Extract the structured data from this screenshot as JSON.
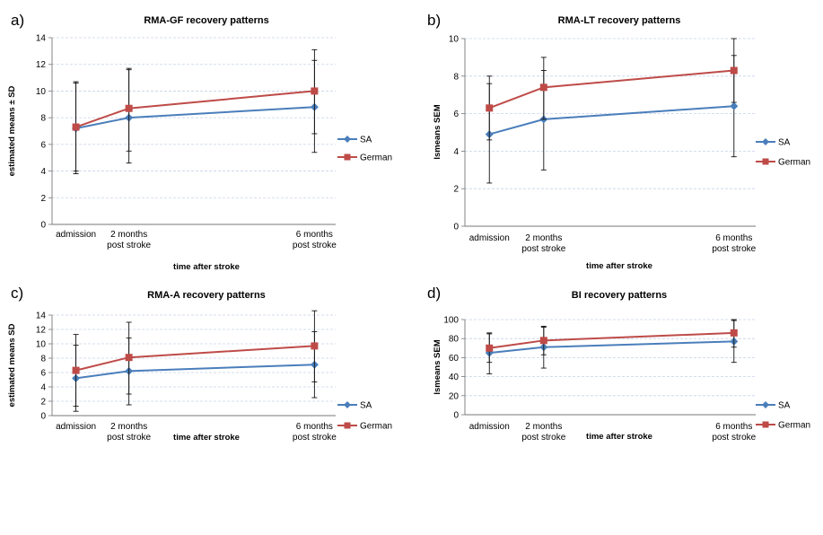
{
  "chart_data": [
    {
      "type": "line",
      "panel": "a)",
      "title": "RMA-GF recovery patterns",
      "xlabel": "time after stroke",
      "ylabel": "estimated means ± SD",
      "categories": [
        "admission",
        "2 months\npost stroke",
        "6 months\npost stroke"
      ],
      "x": [
        0,
        2,
        9
      ],
      "ylim": [
        0,
        14
      ],
      "yticks": [
        0,
        2,
        4,
        6,
        8,
        10,
        12,
        14
      ],
      "grid": true,
      "legend_position": "right",
      "series": [
        {
          "name": "SA",
          "color": "#4a7ebb",
          "marker": "diamond",
          "values": [
            7.2,
            8.0,
            8.8
          ],
          "err_low": [
            3.8,
            4.6,
            5.4
          ],
          "err_high": [
            10.6,
            11.6,
            12.3
          ]
        },
        {
          "name": "German",
          "color": "#be4b48",
          "marker": "square",
          "values": [
            7.3,
            8.7,
            10.0
          ],
          "err_low": [
            4.0,
            5.5,
            6.8
          ],
          "err_high": [
            10.7,
            11.7,
            13.1
          ]
        }
      ]
    },
    {
      "type": "line",
      "panel": "b)",
      "title": "RMA-LT recovery patterns",
      "xlabel": "time after stroke",
      "ylabel": "lsmeans SEM",
      "categories": [
        "admission",
        "2 months\npost stroke",
        "6 months\npost stroke"
      ],
      "x": [
        0,
        2,
        9
      ],
      "ylim": [
        0,
        10
      ],
      "yticks": [
        0,
        2,
        4,
        6,
        8,
        10
      ],
      "grid": true,
      "legend_position": "right",
      "series": [
        {
          "name": "SA",
          "color": "#4a7ebb",
          "marker": "diamond",
          "values": [
            4.9,
            5.7,
            6.4
          ],
          "err_low": [
            2.3,
            3.0,
            3.7
          ],
          "err_high": [
            7.6,
            8.3,
            9.1
          ]
        },
        {
          "name": "German",
          "color": "#be4b48",
          "marker": "square",
          "values": [
            6.3,
            7.4,
            8.3
          ],
          "err_low": [
            4.6,
            5.7,
            6.6
          ],
          "err_high": [
            8.0,
            9.0,
            10.0
          ]
        }
      ]
    },
    {
      "type": "line",
      "panel": "c)",
      "title": "RMA-A recovery patterns",
      "xlabel": "time after stroke",
      "ylabel": "estimated means SD",
      "categories": [
        "admission",
        "2 months\npost stroke",
        "6 months\npost stroke"
      ],
      "x": [
        0,
        2,
        9
      ],
      "ylim": [
        0,
        14
      ],
      "yticks": [
        0,
        2,
        4,
        6,
        8,
        10,
        12,
        14
      ],
      "grid": true,
      "legend_position": "right",
      "series": [
        {
          "name": "SA",
          "color": "#4a7ebb",
          "marker": "diamond",
          "values": [
            5.2,
            6.2,
            7.1
          ],
          "err_low": [
            0.6,
            1.5,
            2.5
          ],
          "err_high": [
            9.8,
            10.8,
            11.7
          ]
        },
        {
          "name": "German",
          "color": "#be4b48",
          "marker": "square",
          "values": [
            6.3,
            8.1,
            9.7
          ],
          "err_low": [
            1.3,
            3.0,
            4.7
          ],
          "err_high": [
            11.3,
            13.0,
            14.6
          ]
        }
      ]
    },
    {
      "type": "line",
      "panel": "d)",
      "title": "BI recovery patterns",
      "xlabel": "time after stroke",
      "ylabel": "lsmeans SEM",
      "categories": [
        "admission",
        "2 months\npost stroke",
        "6 months\npost stroke"
      ],
      "x": [
        0,
        2,
        9
      ],
      "ylim": [
        0,
        100
      ],
      "yticks": [
        0,
        20,
        40,
        60,
        80,
        100
      ],
      "grid": true,
      "legend_position": "right",
      "series": [
        {
          "name": "SA",
          "color": "#4a7ebb",
          "marker": "diamond",
          "values": [
            65,
            71,
            77
          ],
          "err_low": [
            43,
            49,
            55
          ],
          "err_high": [
            86,
            93,
            99
          ]
        },
        {
          "name": "German",
          "color": "#be4b48",
          "marker": "square",
          "values": [
            70,
            78,
            86
          ],
          "err_low": [
            55,
            63,
            71
          ],
          "err_high": [
            85,
            92,
            100
          ]
        }
      ]
    }
  ]
}
